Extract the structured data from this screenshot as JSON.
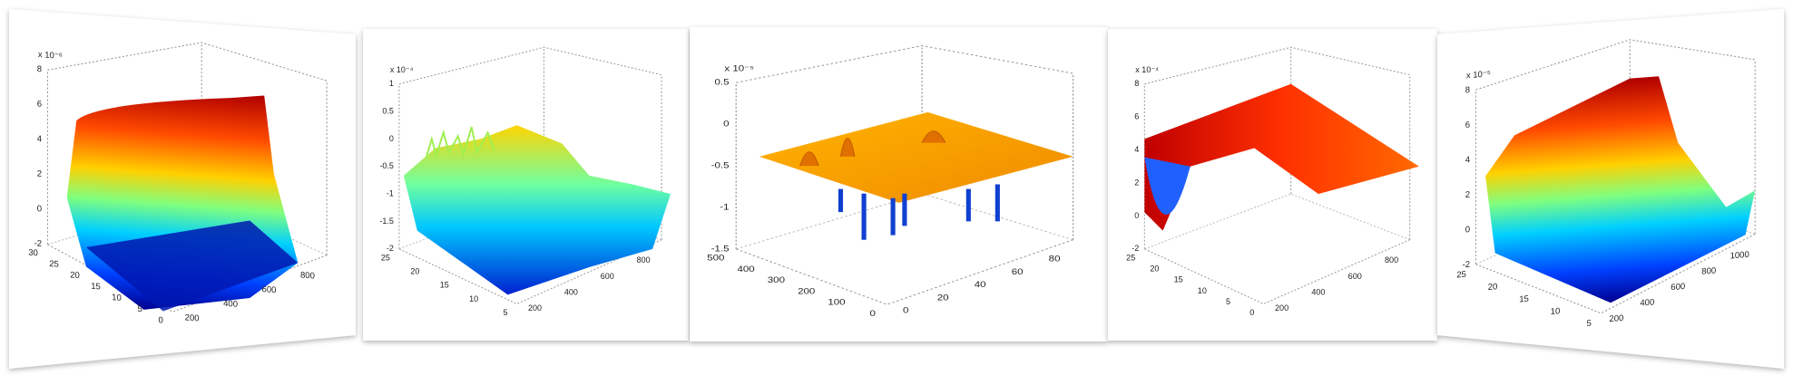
{
  "panels": [
    {
      "exponent": "x 10⁻⁶",
      "z_ticks": [
        "8",
        "6",
        "4",
        "2",
        "0",
        "-2"
      ],
      "y_ticks": [
        "30",
        "25",
        "20",
        "15",
        "10",
        "5",
        "0"
      ],
      "x_ticks": [
        "200",
        "400",
        "600",
        "800"
      ]
    },
    {
      "exponent": "x 10⁻⁴",
      "z_ticks": [
        "1",
        "0.5",
        "0",
        "-0.5",
        "-1",
        "-1.5",
        "-2"
      ],
      "y_ticks": [
        "25",
        "20",
        "15",
        "10",
        "5"
      ],
      "x_ticks": [
        "200",
        "400",
        "600",
        "800"
      ]
    },
    {
      "exponent": "x 10⁻⁵",
      "z_ticks": [
        "0.5",
        "0",
        "-0.5",
        "-1",
        "-1.5"
      ],
      "y_ticks": [
        "500",
        "400",
        "300",
        "200",
        "100",
        "0"
      ],
      "x_ticks": [
        "0",
        "20",
        "40",
        "60",
        "80"
      ]
    },
    {
      "exponent": "x 10⁻⁴",
      "z_ticks": [
        "8",
        "6",
        "4",
        "2",
        "0",
        "-2"
      ],
      "y_ticks": [
        "25",
        "20",
        "15",
        "10",
        "5",
        "0"
      ],
      "x_ticks": [
        "200",
        "400",
        "600",
        "800"
      ]
    },
    {
      "exponent": "x 10⁻⁵",
      "z_ticks": [
        "8",
        "6",
        "4",
        "2",
        "0",
        "-2"
      ],
      "y_ticks": [
        "25",
        "20",
        "15",
        "10",
        "5"
      ],
      "x_ticks": [
        "200",
        "400",
        "600",
        "800",
        "1000"
      ]
    }
  ]
}
